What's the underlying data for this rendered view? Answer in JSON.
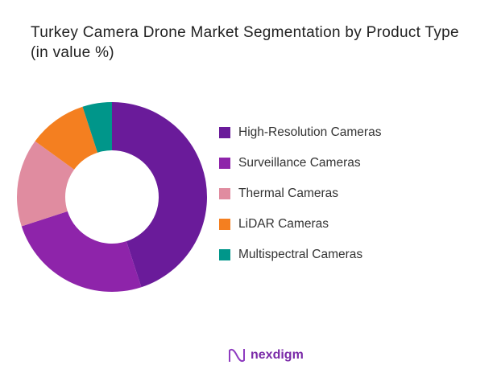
{
  "chart_data": {
    "type": "pie",
    "donut": true,
    "title": "Turkey Camera Drone Market Segmentation by Product Type",
    "subtitle": "(in value %)",
    "categories": [
      "High-Resolution Cameras",
      "Surveillance Cameras",
      "Thermal Cameras",
      "LiDAR Cameras",
      "Multispectral Cameras"
    ],
    "values": [
      45,
      25,
      15,
      10,
      5
    ],
    "colors": [
      "#6a1b9a",
      "#8e24aa",
      "#e08ca0",
      "#f47f20",
      "#00968a"
    ],
    "legend_position": "right"
  },
  "brand": {
    "name": "nexdigm"
  }
}
